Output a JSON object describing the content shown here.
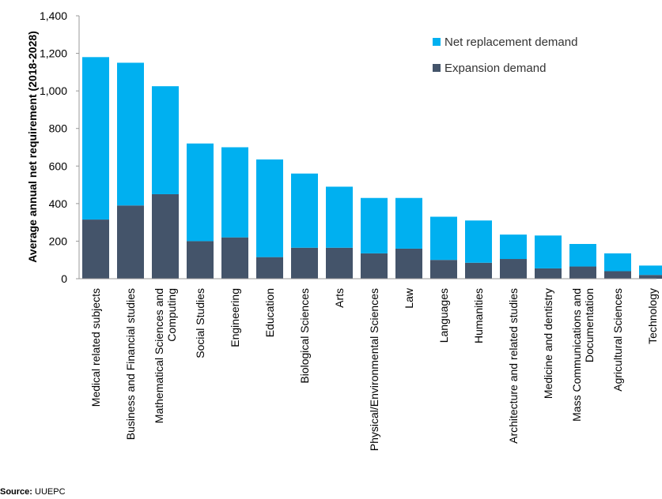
{
  "chart_data": {
    "type": "bar",
    "stacked": true,
    "ylabel": "Average annual net requirement (2018-2028)",
    "ylim": [
      0,
      1400
    ],
    "yticks": [
      0,
      200,
      400,
      600,
      800,
      1000,
      1200,
      1400
    ],
    "ytick_labels": [
      "0",
      "200",
      "400",
      "600",
      "800",
      "1,000",
      "1,200",
      "1,400"
    ],
    "grid": false,
    "legend_position": "top-right",
    "categories": [
      [
        "Medical related subjects"
      ],
      [
        "Business and Financial studies"
      ],
      [
        "Mathematical Sciences and",
        "Computing"
      ],
      [
        "Social Studies"
      ],
      [
        "Engineering"
      ],
      [
        "Education"
      ],
      [
        "Biological Sciences"
      ],
      [
        "Arts"
      ],
      [
        "Physical/Environmental Sciences"
      ],
      [
        "Law"
      ],
      [
        "Languages"
      ],
      [
        "Humanities"
      ],
      [
        "Architecture and related studies"
      ],
      [
        "Medicine and dentistry"
      ],
      [
        "Mass Communications and",
        "Documentation"
      ],
      [
        "Agricultural Sciences"
      ],
      [
        "Technology"
      ]
    ],
    "series": [
      {
        "name": "Expansion demand",
        "color": "#44546a",
        "values": [
          315,
          390,
          450,
          200,
          220,
          115,
          165,
          165,
          135,
          160,
          100,
          85,
          105,
          55,
          65,
          40,
          20
        ]
      },
      {
        "name": "Net replacement demand",
        "color": "#00b0f0",
        "values": [
          865,
          760,
          575,
          520,
          480,
          520,
          395,
          325,
          295,
          270,
          230,
          225,
          130,
          175,
          120,
          95,
          50
        ]
      }
    ],
    "legend_order": [
      "Net replacement demand",
      "Expansion demand"
    ]
  },
  "footer": {
    "source_label": "Source:",
    "source_value": "UUEPC"
  }
}
